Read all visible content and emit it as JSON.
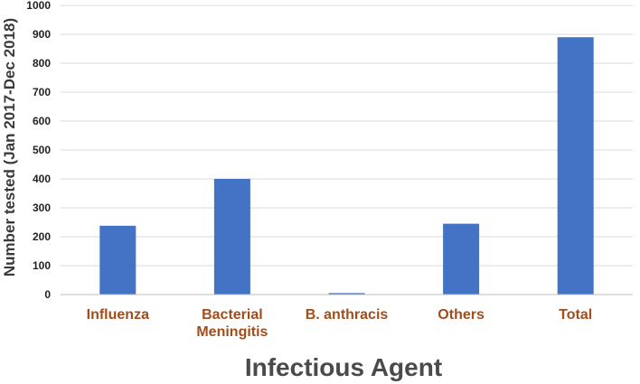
{
  "chart_data": {
    "type": "bar",
    "categories": [
      [
        "Influenza"
      ],
      [
        "Bacterial",
        "Meningitis"
      ],
      [
        "B. anthracis"
      ],
      [
        "Others"
      ],
      [
        "Total"
      ]
    ],
    "values": [
      238,
      400,
      5,
      245,
      890
    ],
    "xlabel": "Infectious Agent",
    "ylabel": "Number tested (Jan 2017-Dec 2018)",
    "ylim": [
      0,
      1000
    ],
    "yticks": [
      0,
      100,
      200,
      300,
      400,
      500,
      600,
      700,
      800,
      900,
      1000
    ],
    "grid": true,
    "legend": "none",
    "colors": {
      "bar": "#4472c4",
      "category_label": "#a14d1c",
      "grid": "#d9d9d9"
    }
  }
}
